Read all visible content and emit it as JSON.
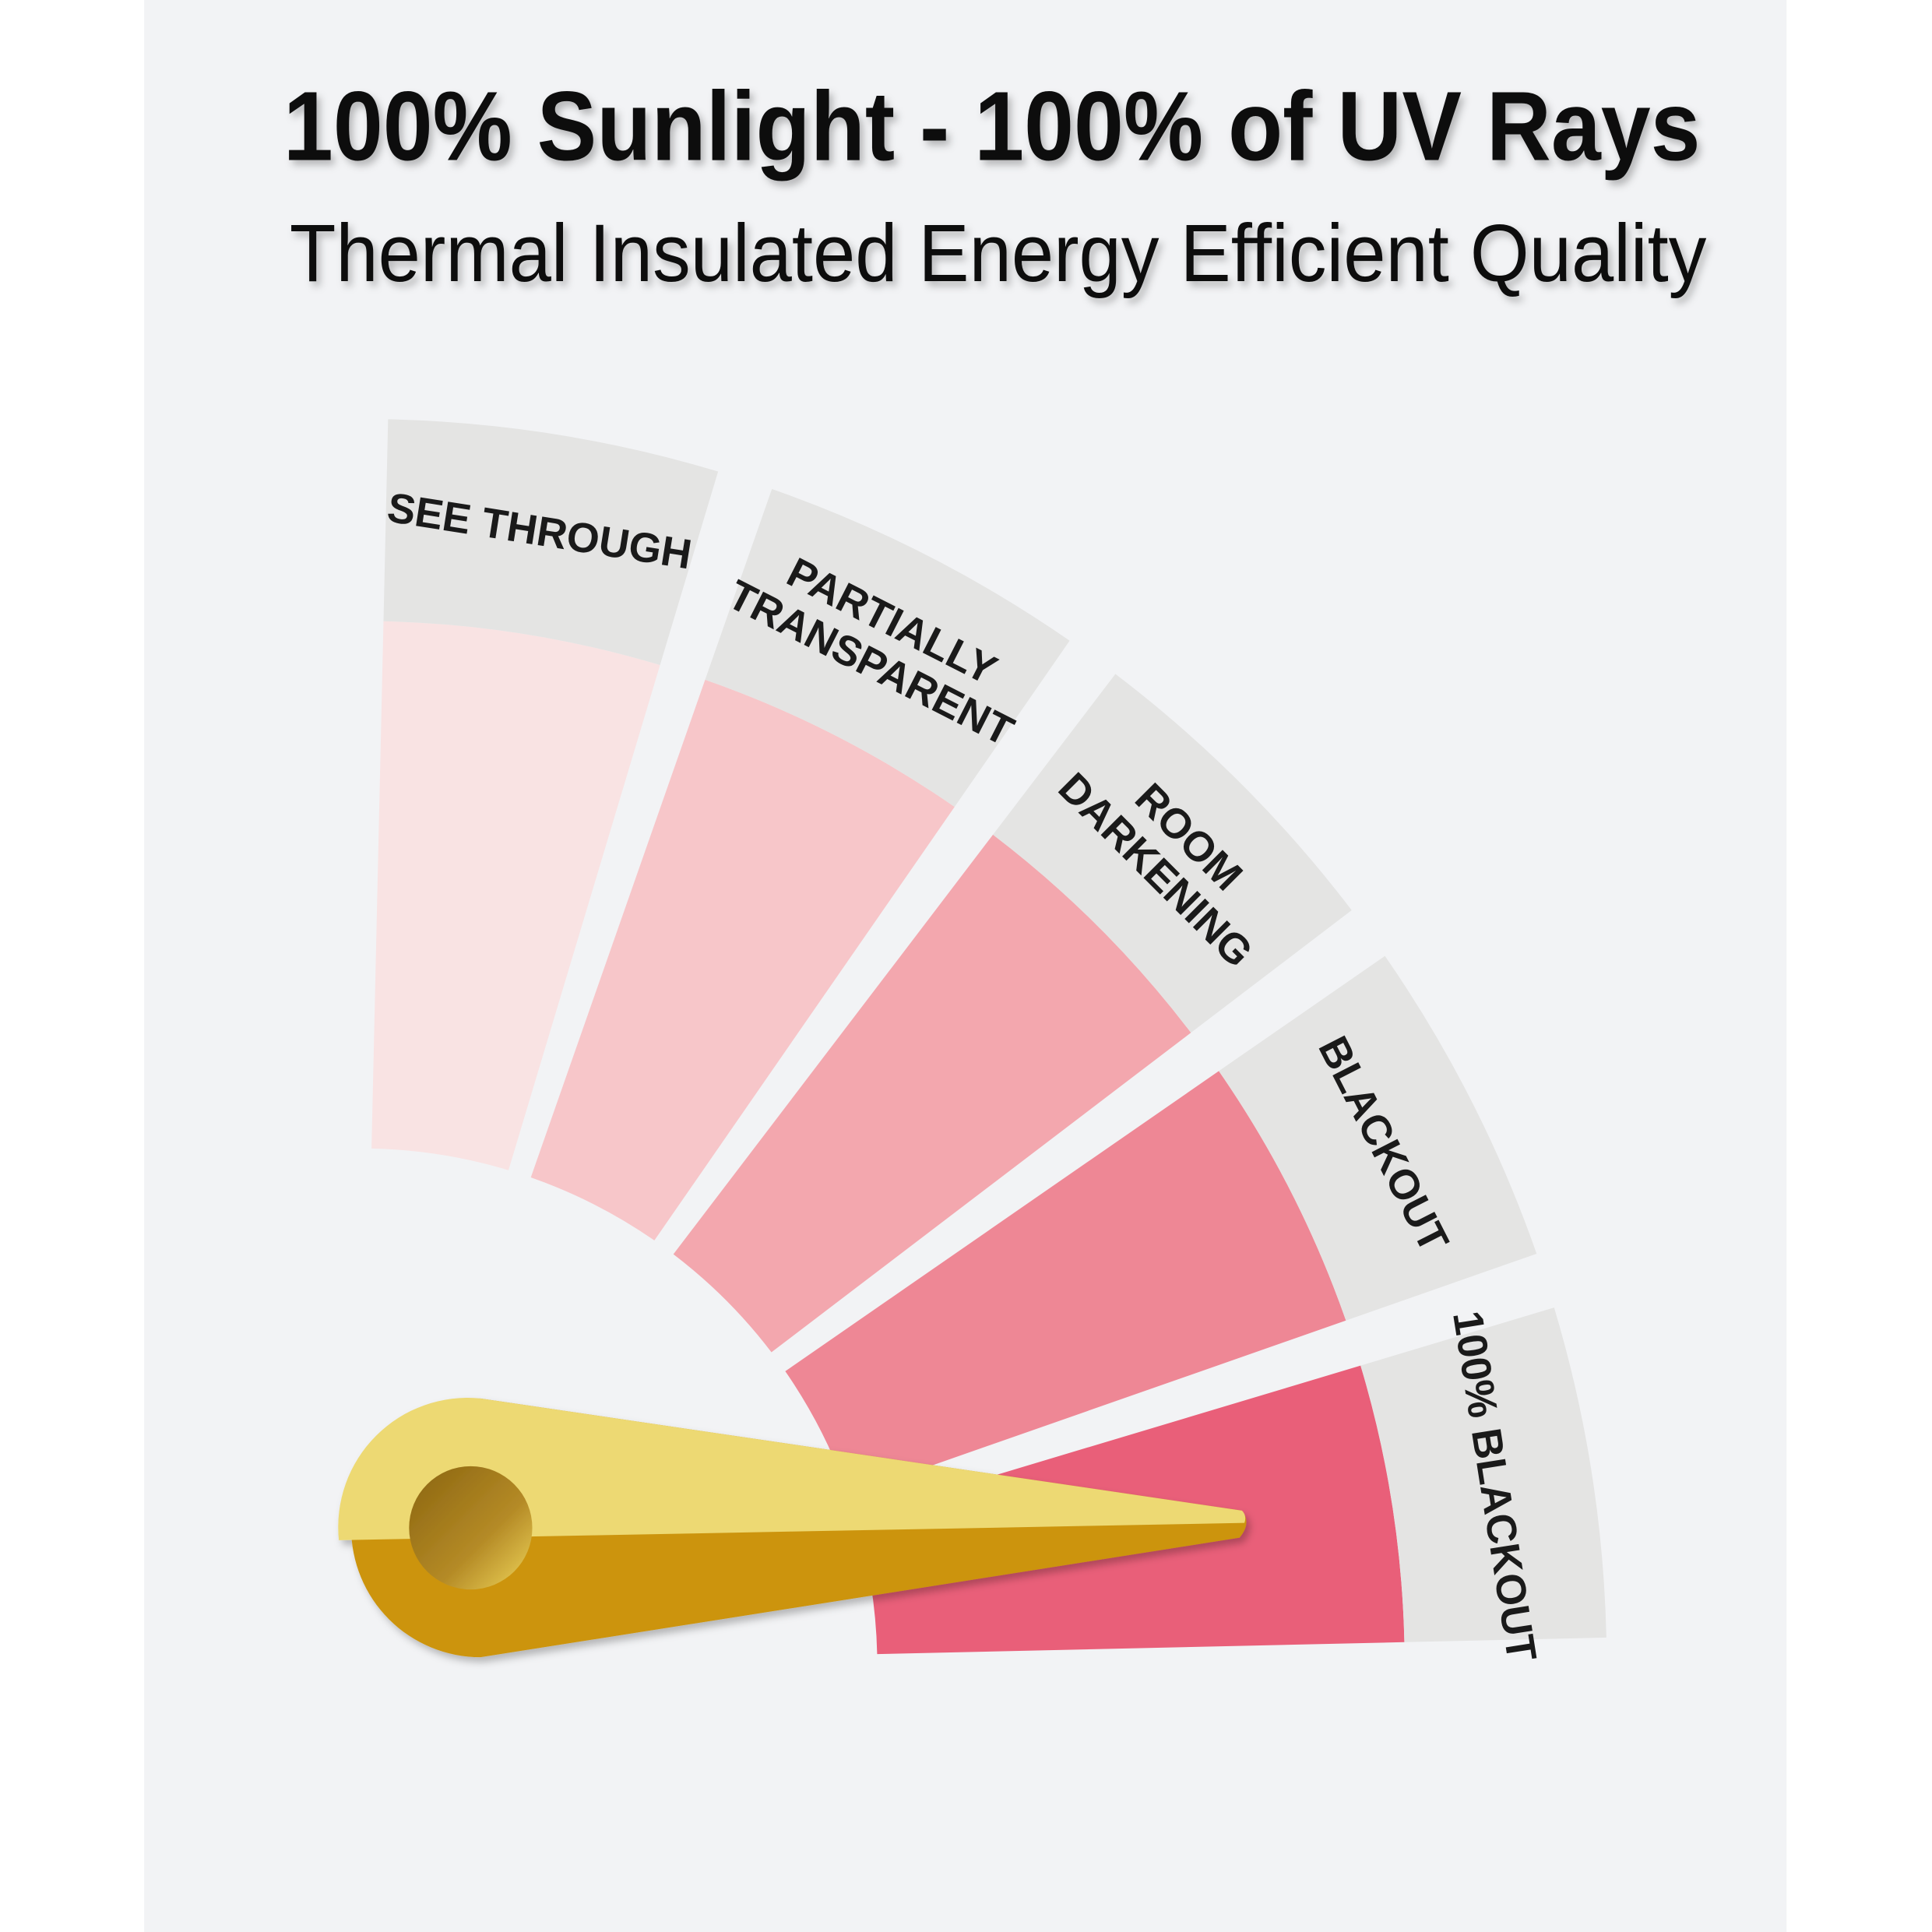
{
  "header": {
    "title": "100% Sunlight - 100% of UV Rays",
    "subtitle": "Thermal Insulated Energy Efficient Quality"
  },
  "segments": [
    {
      "lines": [
        "SEE THROUGH"
      ]
    },
    {
      "lines": [
        "PARTIALLY",
        "TRANSPARENT"
      ]
    },
    {
      "lines": [
        "ROOM",
        "DARKENING"
      ]
    },
    {
      "lines": [
        "BLACKOUT"
      ]
    },
    {
      "lines": [
        "100% BLACKOUT"
      ]
    }
  ]
}
